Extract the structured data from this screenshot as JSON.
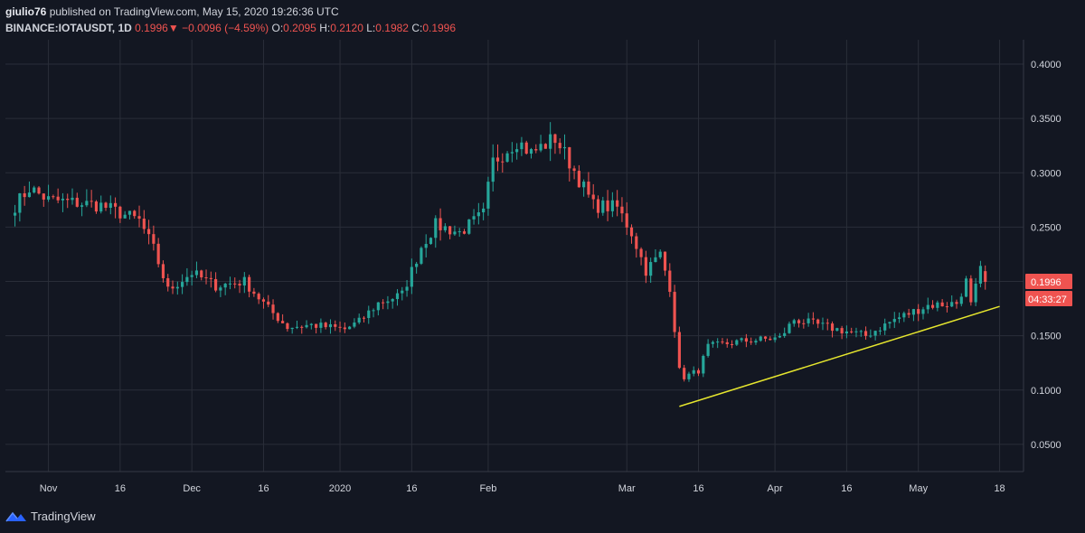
{
  "header": {
    "publisher": "giulio76",
    "published_text": "published on TradingView.com, May 15, 2020 19:26:36 UTC",
    "symbol": "BINANCE:IOTAUSDT, 1D",
    "last": "0.1996",
    "change_arrow": "▼",
    "change": "−0.0096 (−4.59%)",
    "o_label": "O:",
    "o": "0.2095",
    "h_label": "H:",
    "h": "0.2120",
    "l_label": "L:",
    "l": "0.1982",
    "c_label": "C:",
    "c": "0.1996"
  },
  "price_tag": {
    "price": "0.1996",
    "countdown": "04:33:27"
  },
  "footer": {
    "brand": "TradingView",
    "icon": "tradingview-logo-icon"
  },
  "colors": {
    "up": "#26a69a",
    "down": "#ef5350",
    "bg": "#131722",
    "grid": "#2a2e39",
    "trend": "#e6e62e"
  },
  "chart_data": {
    "type": "candlestick",
    "x_ticks": [
      "Nov",
      "16",
      "Dec",
      "16",
      "2020",
      "16",
      "Feb",
      "Mar",
      "16",
      "Apr",
      "16",
      "May",
      "18"
    ],
    "y_ticks": [
      "0.4000",
      "0.3500",
      "0.3000",
      "0.2500",
      "0.2000",
      "0.1500",
      "0.1000",
      "0.0500"
    ],
    "ylim": [
      0.025,
      0.4225
    ],
    "trendline": {
      "from": [
        "2020-03-12",
        0.085
      ],
      "to": [
        "2020-05-18",
        0.177
      ]
    },
    "waypoints": [
      [
        "2019-10-25",
        0.27
      ],
      [
        "2019-10-28",
        0.286
      ],
      [
        "2019-11-01",
        0.275
      ],
      [
        "2019-11-12",
        0.27
      ],
      [
        "2019-11-20",
        0.256
      ],
      [
        "2019-11-23",
        0.23
      ],
      [
        "2019-11-26",
        0.192
      ],
      [
        "2019-12-01",
        0.208
      ],
      [
        "2019-12-06",
        0.196
      ],
      [
        "2019-12-12",
        0.2
      ],
      [
        "2019-12-17",
        0.175
      ],
      [
        "2019-12-21",
        0.158
      ],
      [
        "2019-12-26",
        0.16
      ],
      [
        "2020-01-02",
        0.156
      ],
      [
        "2020-01-05",
        0.163
      ],
      [
        "2020-01-09",
        0.18
      ],
      [
        "2020-01-14",
        0.188
      ],
      [
        "2020-01-18",
        0.232
      ],
      [
        "2020-01-21",
        0.252
      ],
      [
        "2020-01-26",
        0.245
      ],
      [
        "2020-01-31",
        0.262
      ],
      [
        "2020-02-02",
        0.31
      ],
      [
        "2020-02-07",
        0.33
      ],
      [
        "2020-02-10",
        0.318
      ],
      [
        "2020-02-15",
        0.332
      ],
      [
        "2020-02-18",
        0.31
      ],
      [
        "2020-02-23",
        0.27
      ],
      [
        "2020-02-28",
        0.268
      ],
      [
        "2020-03-02",
        0.245
      ],
      [
        "2020-03-05",
        0.21
      ],
      [
        "2020-03-08",
        0.225
      ],
      [
        "2020-03-10",
        0.195
      ],
      [
        "2020-03-12",
        0.118
      ],
      [
        "2020-03-13",
        0.112
      ],
      [
        "2020-03-16",
        0.118
      ],
      [
        "2020-03-18",
        0.14
      ],
      [
        "2020-03-25",
        0.145
      ],
      [
        "2020-04-02",
        0.148
      ],
      [
        "2020-04-05",
        0.165
      ],
      [
        "2020-04-12",
        0.158
      ],
      [
        "2020-04-20",
        0.15
      ],
      [
        "2020-04-26",
        0.165
      ],
      [
        "2020-05-03",
        0.178
      ],
      [
        "2020-05-09",
        0.18
      ],
      [
        "2020-05-11",
        0.2
      ],
      [
        "2020-05-12",
        0.178
      ],
      [
        "2020-05-14",
        0.21
      ],
      [
        "2020-05-15",
        0.1996
      ]
    ]
  }
}
